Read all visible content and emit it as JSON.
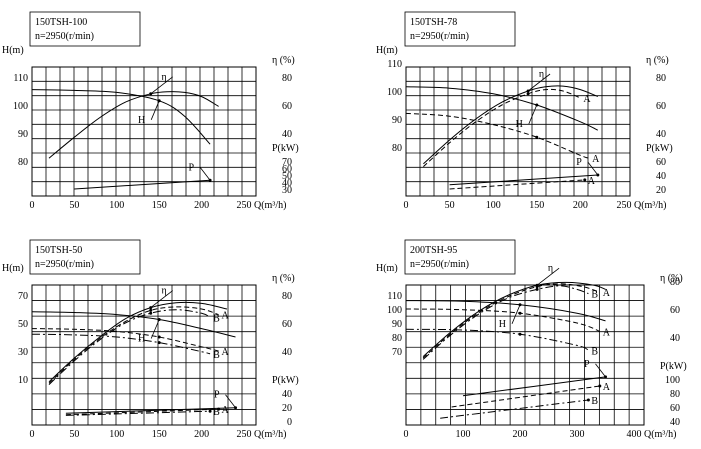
{
  "chart_data": [
    {
      "type": "line",
      "model": "150TSH-100",
      "speed": "n=2950(r/min)",
      "xlabel": "Q(m³/h)",
      "xlim": [
        0,
        250
      ],
      "x_ticks": [
        "0",
        "50",
        "100",
        "150",
        "200",
        "250"
      ],
      "h_label": "H(m)",
      "h_ticks": [
        "80",
        "90",
        "100",
        "110"
      ],
      "eta_label": "η (%)",
      "eta_ticks": [
        "40",
        "60",
        "80"
      ],
      "p_label": "P(kW)",
      "p_ticks": [
        "30",
        "40",
        "50",
        "60",
        "70"
      ],
      "curve_labels": {
        "H": "H",
        "eta": "η",
        "P": "P"
      },
      "series": [
        {
          "kind": "H",
          "style": "solid",
          "x": [
            0,
            50,
            100,
            150,
            180,
            210
          ],
          "y": [
            105.5,
            105.2,
            104.5,
            101.5,
            96,
            86
          ]
        },
        {
          "kind": "eta",
          "style": "solid",
          "x": [
            20,
            50,
            80,
            110,
            140,
            160,
            180,
            200,
            220
          ],
          "y": [
            22,
            37,
            51,
            62,
            68,
            69.5,
            69,
            66,
            59
          ]
        },
        {
          "kind": "P",
          "style": "solid",
          "x": [
            50,
            210
          ],
          "y": [
            30,
            42.5
          ]
        }
      ]
    },
    {
      "type": "line",
      "model": "150TSH-78",
      "speed": "n=2950(r/min)",
      "xlabel": "Q(m³/h)",
      "xlim": [
        0,
        250
      ],
      "x_ticks": [
        "0",
        "50",
        "100",
        "150",
        "200",
        "250"
      ],
      "h_label": "H(m)",
      "h_ticks": [
        "80",
        "90",
        "100",
        "110"
      ],
      "eta_label": "η (%)",
      "eta_ticks": [
        "40",
        "60",
        "80"
      ],
      "p_label": "P(kW)",
      "p_ticks": [
        "20",
        "40",
        "60"
      ],
      "curve_labels": {
        "H": "H",
        "eta": "η",
        "P": "P",
        "A": "A"
      },
      "series": [
        {
          "kind": "H",
          "style": "solid",
          "x": [
            0,
            50,
            100,
            150,
            200,
            220
          ],
          "y": [
            101.5,
            101,
            99,
            95,
            89,
            86
          ]
        },
        {
          "kind": "H",
          "variant": "A",
          "style": "dashed",
          "x": [
            0,
            50,
            100,
            150,
            200,
            210
          ],
          "y": [
            92,
            91,
            88,
            83.5,
            77,
            76
          ]
        },
        {
          "kind": "eta",
          "style": "solid",
          "x": [
            20,
            50,
            80,
            110,
            140,
            160,
            180,
            200,
            220
          ],
          "y": [
            18,
            35,
            50,
            62,
            70,
            73,
            73.5,
            71,
            66
          ]
        },
        {
          "kind": "eta",
          "variant": "A",
          "style": "dashed",
          "x": [
            20,
            50,
            80,
            110,
            140,
            160,
            180,
            200
          ],
          "y": [
            16,
            33,
            48,
            60,
            68,
            71,
            70,
            65
          ]
        },
        {
          "kind": "P",
          "style": "solid",
          "x": [
            50,
            220
          ],
          "y": [
            26,
            40
          ]
        },
        {
          "kind": "P",
          "variant": "A",
          "style": "dashed",
          "x": [
            50,
            205
          ],
          "y": [
            20,
            33
          ]
        }
      ]
    },
    {
      "type": "line",
      "model": "150TSH-50",
      "speed": "n=2950(r/min)",
      "xlabel": "Q(m³/h)",
      "xlim": [
        0,
        250
      ],
      "x_ticks": [
        "0",
        "50",
        "100",
        "150",
        "200",
        "250"
      ],
      "h_label": "H(m)",
      "h_ticks": [
        "10",
        "30",
        "50",
        "70"
      ],
      "eta_label": "η (%)",
      "eta_ticks": [
        "40",
        "60",
        "80"
      ],
      "p_label": "P(kW)",
      "p_ticks": [
        "0",
        "20",
        "40"
      ],
      "curve_labels": {
        "H": "H",
        "eta": "η",
        "P": "P",
        "A": "A",
        "B": "B"
      },
      "series": [
        {
          "kind": "H",
          "style": "solid",
          "x": [
            0,
            50,
            100,
            150,
            200,
            240
          ],
          "y": [
            58,
            57.5,
            56,
            52.5,
            46,
            40
          ]
        },
        {
          "kind": "H",
          "variant": "A",
          "style": "dashed",
          "x": [
            0,
            50,
            100,
            150,
            200,
            220
          ],
          "y": [
            46,
            45.5,
            44,
            40,
            33,
            30
          ]
        },
        {
          "kind": "H",
          "variant": "B",
          "style": "dashdot",
          "x": [
            0,
            50,
            100,
            150,
            200,
            210
          ],
          "y": [
            42,
            41.5,
            40,
            36,
            29.5,
            28
          ]
        },
        {
          "kind": "eta",
          "style": "solid",
          "x": [
            20,
            50,
            80,
            110,
            140,
            170,
            200,
            230
          ],
          "y": [
            18,
            35,
            50,
            63,
            71,
            74.5,
            74,
            70
          ]
        },
        {
          "kind": "eta",
          "variant": "A",
          "style": "dashed",
          "x": [
            20,
            50,
            80,
            110,
            140,
            170,
            200,
            220
          ],
          "y": [
            17,
            34,
            49,
            61,
            69,
            71.5,
            70,
            66
          ]
        },
        {
          "kind": "eta",
          "variant": "B",
          "style": "dashdot",
          "x": [
            20,
            50,
            80,
            110,
            140,
            170,
            200,
            210
          ],
          "y": [
            16,
            33,
            48,
            60,
            67,
            69.5,
            67,
            64
          ]
        },
        {
          "kind": "P",
          "style": "solid",
          "x": [
            40,
            240
          ],
          "y": [
            11,
            19
          ]
        },
        {
          "kind": "P",
          "variant": "A",
          "style": "dashed",
          "x": [
            40,
            220
          ],
          "y": [
            9,
            17
          ]
        },
        {
          "kind": "P",
          "variant": "B",
          "style": "dashdot",
          "x": [
            40,
            210
          ],
          "y": [
            8,
            14
          ]
        }
      ]
    },
    {
      "type": "line",
      "model": "200TSH-95",
      "speed": "n=2950(r/min)",
      "xlabel": "Q(m³/h)",
      "xlim": [
        0,
        400
      ],
      "x_ticks": [
        "0",
        "100",
        "200",
        "300",
        "400"
      ],
      "h_label": "H(m)",
      "h_ticks": [
        "70",
        "80",
        "90",
        "100",
        "110"
      ],
      "eta_label": "η (%)",
      "eta_ticks": [
        "40",
        "60",
        "80"
      ],
      "p_label": "P(kW)",
      "p_ticks": [
        "40",
        "60",
        "80",
        "100"
      ],
      "curve_labels": {
        "H": "H",
        "eta": "η",
        "P": "P",
        "A": "A",
        "B": "B"
      },
      "series": [
        {
          "kind": "H",
          "style": "solid",
          "x": [
            0,
            100,
            200,
            300,
            350
          ],
          "y": [
            106,
            105.5,
            103,
            97,
            91.5
          ]
        },
        {
          "kind": "H",
          "variant": "A",
          "style": "dashed",
          "x": [
            0,
            100,
            200,
            300,
            340
          ],
          "y": [
            100,
            99.5,
            97,
            90,
            84
          ]
        },
        {
          "kind": "H",
          "variant": "B",
          "style": "dashdot",
          "x": [
            0,
            100,
            200,
            300,
            320
          ],
          "y": [
            85.5,
            85,
            82,
            74,
            70.5
          ]
        },
        {
          "kind": "eta",
          "style": "solid",
          "x": [
            30,
            80,
            130,
            180,
            230,
            280,
            330,
            350
          ],
          "y": [
            26,
            44,
            59,
            70,
            77,
            79,
            77,
            74
          ]
        },
        {
          "kind": "eta",
          "variant": "A",
          "style": "dashed",
          "x": [
            30,
            80,
            130,
            180,
            230,
            270,
            310,
            340
          ],
          "y": [
            25,
            43,
            58,
            69,
            76,
            78,
            76,
            72
          ]
        },
        {
          "kind": "eta",
          "variant": "B",
          "style": "dashdot",
          "x": [
            30,
            80,
            130,
            180,
            230,
            270,
            300,
            320
          ],
          "y": [
            24,
            42,
            57,
            68,
            74,
            76.5,
            74,
            71
          ]
        },
        {
          "kind": "P",
          "style": "solid",
          "x": [
            100,
            350
          ],
          "y": [
            76,
            103
          ]
        },
        {
          "kind": "P",
          "variant": "A",
          "style": "dashed",
          "x": [
            80,
            340
          ],
          "y": [
            60,
            90
          ]
        },
        {
          "kind": "P",
          "variant": "B",
          "style": "dashdot",
          "x": [
            60,
            320
          ],
          "y": [
            44,
            70
          ]
        }
      ]
    }
  ]
}
